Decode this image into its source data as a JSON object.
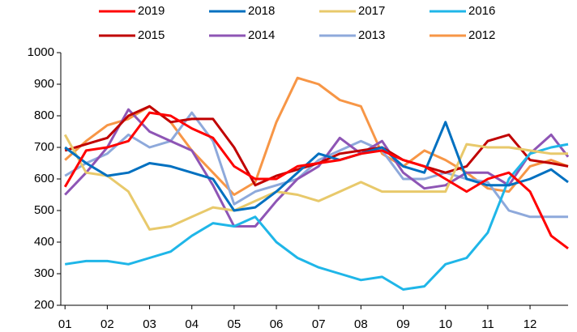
{
  "chart_data": {
    "type": "line",
    "x": [
      1,
      1.5,
      2,
      2.5,
      3,
      3.5,
      4,
      4.5,
      5,
      5.5,
      6,
      6.5,
      7,
      7.5,
      8,
      8.5,
      9,
      9.5,
      10,
      10.5,
      11,
      11.5,
      12,
      12.5,
      12.9
    ],
    "series": [
      {
        "name": "2019",
        "color": "#ff0000",
        "values": [
          575,
          690,
          700,
          720,
          810,
          800,
          760,
          730,
          640,
          600,
          600,
          640,
          650,
          660,
          680,
          690,
          660,
          640,
          600,
          560,
          600,
          620,
          560,
          420,
          380
        ]
      },
      {
        "name": "2018",
        "color": "#0070c0",
        "values": [
          700,
          650,
          610,
          620,
          650,
          640,
          620,
          600,
          500,
          510,
          560,
          620,
          680,
          660,
          680,
          700,
          640,
          620,
          780,
          600,
          580,
          580,
          600,
          630,
          590
        ]
      },
      {
        "name": "2017",
        "color": "#e8c96b",
        "values": [
          740,
          620,
          610,
          560,
          440,
          450,
          480,
          510,
          500,
          530,
          560,
          550,
          530,
          560,
          590,
          560,
          560,
          560,
          560,
          710,
          700,
          700,
          690,
          680,
          680
        ]
      },
      {
        "name": "2016",
        "color": "#1fb6e8",
        "values": [
          330,
          340,
          340,
          330,
          350,
          370,
          420,
          460,
          450,
          480,
          400,
          350,
          320,
          300,
          280,
          290,
          250,
          260,
          330,
          350,
          430,
          600,
          680,
          700,
          710
        ]
      },
      {
        "name": "2015",
        "color": "#c00000",
        "values": [
          690,
          710,
          730,
          800,
          830,
          780,
          790,
          790,
          700,
          580,
          610,
          630,
          650,
          680,
          690,
          700,
          660,
          640,
          620,
          640,
          720,
          740,
          660,
          650,
          640
        ]
      },
      {
        "name": "2014",
        "color": "#8e55b5",
        "values": [
          550,
          620,
          700,
          820,
          750,
          720,
          690,
          580,
          450,
          450,
          530,
          600,
          640,
          730,
          680,
          720,
          620,
          570,
          580,
          620,
          620,
          580,
          680,
          740,
          670
        ]
      },
      {
        "name": "2013",
        "color": "#8ea9db",
        "values": [
          610,
          650,
          680,
          740,
          700,
          720,
          810,
          720,
          520,
          560,
          580,
          600,
          660,
          690,
          720,
          690,
          600,
          600,
          620,
          600,
          590,
          500,
          480,
          480,
          480
        ]
      },
      {
        "name": "2012",
        "color": "#f79646",
        "values": [
          660,
          720,
          770,
          790,
          830,
          780,
          690,
          620,
          550,
          590,
          780,
          920,
          900,
          850,
          830,
          680,
          640,
          690,
          660,
          620,
          570,
          560,
          640,
          660,
          640
        ]
      }
    ],
    "xlim": [
      0.9,
      12.9
    ],
    "xticks": [
      {
        "value": 1,
        "label": "01"
      },
      {
        "value": 2,
        "label": "02"
      },
      {
        "value": 3,
        "label": "03"
      },
      {
        "value": 4,
        "label": "04"
      },
      {
        "value": 5,
        "label": "05"
      },
      {
        "value": 6,
        "label": "06"
      },
      {
        "value": 7,
        "label": "07"
      },
      {
        "value": 8,
        "label": "08"
      },
      {
        "value": 9,
        "label": "09"
      },
      {
        "value": 10,
        "label": "10"
      },
      {
        "value": 11,
        "label": "11"
      },
      {
        "value": 12,
        "label": "12"
      }
    ],
    "ylim": [
      200,
      1000
    ],
    "yticks": [
      200,
      300,
      400,
      500,
      600,
      700,
      800,
      900,
      1000
    ]
  }
}
